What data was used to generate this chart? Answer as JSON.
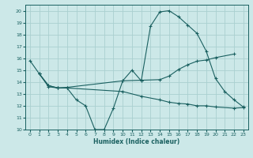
{
  "xlabel": "Humidex (Indice chaleur)",
  "ylabel": "",
  "xlim": [
    -0.5,
    23.5
  ],
  "ylim": [
    10,
    20.5
  ],
  "yticks": [
    10,
    11,
    12,
    13,
    14,
    15,
    16,
    17,
    18,
    19,
    20
  ],
  "xticks": [
    0,
    1,
    2,
    3,
    4,
    5,
    6,
    7,
    8,
    9,
    10,
    11,
    12,
    13,
    14,
    15,
    16,
    17,
    18,
    19,
    20,
    21,
    22,
    23
  ],
  "background_color": "#cce8e8",
  "grid_color": "#aad0d0",
  "line_color": "#1a6060",
  "line1_x": [
    0,
    1,
    2,
    3,
    4,
    5,
    6,
    7,
    8,
    9,
    10,
    11,
    12,
    13,
    14,
    15,
    16,
    17,
    18,
    19,
    20,
    21,
    22,
    23
  ],
  "line1_y": [
    15.8,
    14.7,
    13.6,
    13.5,
    13.5,
    12.5,
    12.0,
    10.0,
    10.0,
    11.8,
    14.1,
    15.0,
    14.1,
    18.7,
    19.9,
    20.0,
    19.5,
    18.8,
    18.1,
    16.6,
    14.3,
    13.2,
    12.5,
    11.9
  ],
  "line2_x": [
    1,
    2,
    3,
    4,
    10,
    12,
    14,
    15,
    16,
    17,
    18,
    19,
    20,
    22
  ],
  "line2_y": [
    14.7,
    13.7,
    13.5,
    13.55,
    14.1,
    14.15,
    14.2,
    14.5,
    15.05,
    15.45,
    15.75,
    15.85,
    16.05,
    16.35
  ],
  "line3_x": [
    1,
    2,
    3,
    4,
    10,
    12,
    14,
    15,
    16,
    17,
    18,
    19,
    20,
    22,
    23
  ],
  "line3_y": [
    14.7,
    13.7,
    13.5,
    13.5,
    13.2,
    12.8,
    12.5,
    12.3,
    12.2,
    12.15,
    12.0,
    12.0,
    11.9,
    11.8,
    11.85
  ]
}
